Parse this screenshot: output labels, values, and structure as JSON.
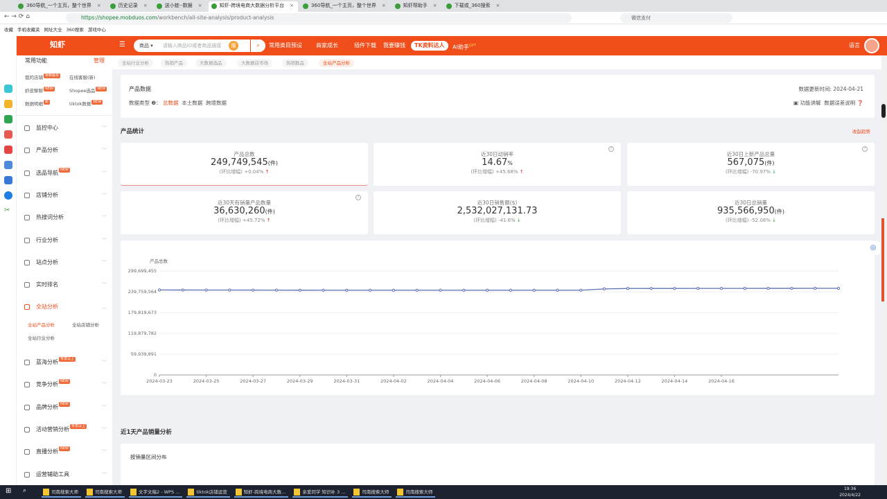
{
  "browser": {
    "tabs": [
      {
        "label": "360导航_一个主页，整个世界"
      },
      {
        "label": "历史记录"
      },
      {
        "label": "送小蛙--数据"
      },
      {
        "label": "知虾-跨境电商大数据分析平台"
      },
      {
        "label": "360导航_一个主页，整个世界"
      },
      {
        "label": "知虾帮助手"
      },
      {
        "label": "下载或_360搜索"
      }
    ],
    "url_host": "https://shopee.mobduos.com",
    "url_path": "/workbench/all-site-analysis/product-analysis",
    "search_placeholder": "微信支付",
    "bookmarks": [
      "收藏",
      "手机收藏夹",
      "网址大全",
      "360搜索",
      "游戏中心"
    ]
  },
  "header": {
    "logo": "知虾",
    "search_category": "商品",
    "search_placeholder": "请输入商品ID或者商品链接",
    "search_chip": "搜",
    "nav": [
      "常用类目预设",
      "商家成长",
      "插件下载",
      "我要赚钱"
    ],
    "tk": "TK资料达人",
    "ai": "AI助手",
    "ai_badge": "GPT",
    "lang": "语言"
  },
  "sidebar": {
    "common_title": "常用功能",
    "manage": "管理",
    "common": [
      {
        "label": "我的店铺",
        "badge": "有新版本"
      },
      {
        "label": "在线客服(新)"
      },
      {
        "label": "虾皮聊聊",
        "badge": "NEW"
      },
      {
        "label": "Shopee选品",
        "badge": "NEW"
      },
      {
        "label": "数据明细",
        "badge": "新"
      },
      {
        "label": "tiktok数据",
        "badge": "NEW"
      }
    ],
    "menu": [
      {
        "label": "监控中心"
      },
      {
        "label": "产品分析"
      },
      {
        "label": "选品导航",
        "badge": "NEW"
      },
      {
        "label": "店铺分析"
      },
      {
        "label": "热搜词分析"
      },
      {
        "label": "行业分析"
      },
      {
        "label": "站点分析"
      },
      {
        "label": "实时排名"
      },
      {
        "label": "全站分析",
        "active": true
      }
    ],
    "sub": [
      "全站产品分析",
      "全站店铺分析",
      "全站行业分析"
    ],
    "menu2": [
      {
        "label": "蓝海分析",
        "badge": "专享以上"
      },
      {
        "label": "竞争分析",
        "badge": "NEW"
      },
      {
        "label": "品牌分析",
        "badge": "NEW"
      },
      {
        "label": "活动营销分析",
        "badge": "专享以上"
      },
      {
        "label": "直播分析",
        "badge": "NEW"
      },
      {
        "label": "运营辅助工具"
      }
    ]
  },
  "breadcrumbs": [
    "全站行业分析",
    "热销产品",
    "大数据选品",
    "大数据店市场",
    "热销数品",
    "全站产品分析"
  ],
  "product_data": {
    "title": "产品数据",
    "type_label": "数据类型",
    "types": [
      "总数据",
      "本土数据",
      "跨境数据"
    ],
    "update_label": "数据更新时间:",
    "update_date": "2024-04-21",
    "func_help": "功能讲解",
    "error_help": "数据误差说明"
  },
  "stats": {
    "title": "产品统计",
    "collapse": "收起趋势",
    "change_label": "(环比增幅)",
    "cards": [
      {
        "label": "产品总数",
        "value": "249,749,545",
        "unit": "(件)",
        "change": "+0.04%",
        "dir": "up"
      },
      {
        "label": "近30日动销率",
        "value": "14.67",
        "unit": "%",
        "change": "+45.68%",
        "dir": "up"
      },
      {
        "label": "近30日上新产品总量",
        "value": "567,075",
        "unit": "(件)",
        "change": "-70.97%",
        "dir": "down"
      },
      {
        "label": "近30天有销量产品数量",
        "value": "36,630,260",
        "unit": "(件)",
        "change": "+45.72%",
        "dir": "up"
      },
      {
        "label": "近30日销售额($)",
        "value": "2,532,027,131.73",
        "unit": "",
        "change": "-41.6%",
        "dir": "down"
      },
      {
        "label": "近30日总销量",
        "value": "935,566,950",
        "unit": "(件)",
        "change": "-52.08%",
        "dir": "down"
      }
    ]
  },
  "chart_data": {
    "type": "line",
    "ylabel": "产品总数",
    "ylim": [
      0,
      299699455
    ],
    "yticks": [
      "0",
      "59,939,891",
      "119,879,782",
      "179,819,673",
      "239,759,564",
      "299,699,455"
    ],
    "xticks": [
      "2024-03-23",
      "2024-03-25",
      "2024-03-27",
      "2024-03-29",
      "2024-03-31",
      "2024-04-02",
      "2024-04-04",
      "2024-04-06",
      "2024-04-08",
      "2024-04-10",
      "2024-04-12",
      "2024-04-14",
      "2024-04-16"
    ],
    "x": [
      "2024-03-23",
      "2024-03-24",
      "2024-03-25",
      "2024-03-26",
      "2024-03-27",
      "2024-03-28",
      "2024-03-29",
      "2024-03-30",
      "2024-03-31",
      "2024-04-01",
      "2024-04-02",
      "2024-04-03",
      "2024-04-04",
      "2024-04-05",
      "2024-04-06",
      "2024-04-07",
      "2024-04-08",
      "2024-04-09",
      "2024-04-10",
      "2024-04-11",
      "2024-04-12",
      "2024-04-13",
      "2024-04-14",
      "2024-04-15",
      "2024-04-16",
      "2024-04-17",
      "2024-04-18",
      "2024-04-19",
      "2024-04-20",
      "2024-04-21"
    ],
    "values": [
      245000000,
      244900000,
      244800000,
      244700000,
      244600000,
      244500000,
      244400000,
      244300000,
      244300000,
      244300000,
      244200000,
      244200000,
      244200000,
      244200000,
      244200000,
      244200000,
      244200000,
      244200000,
      244200000,
      248000000,
      249300000,
      249400000,
      249400000,
      249500000,
      249500000,
      249500000,
      249600000,
      249600000,
      249700000,
      249749545
    ],
    "color": "#5b6fb5",
    "grid": true
  },
  "sales": {
    "title": "近1天产品销量分析",
    "sub": "按销量区间分布"
  },
  "taskbar": {
    "items": [
      "司南搜索大师",
      "司南搜索大师",
      "文字文稿2 - WPS ...",
      "tiktok店铺运营",
      "知虾-跨境电商大数...",
      "亲爱同学 知识补 3 ...",
      "司南搜索大师",
      "司南搜索大师"
    ],
    "time": "19:36",
    "date": "2024/4/22"
  }
}
